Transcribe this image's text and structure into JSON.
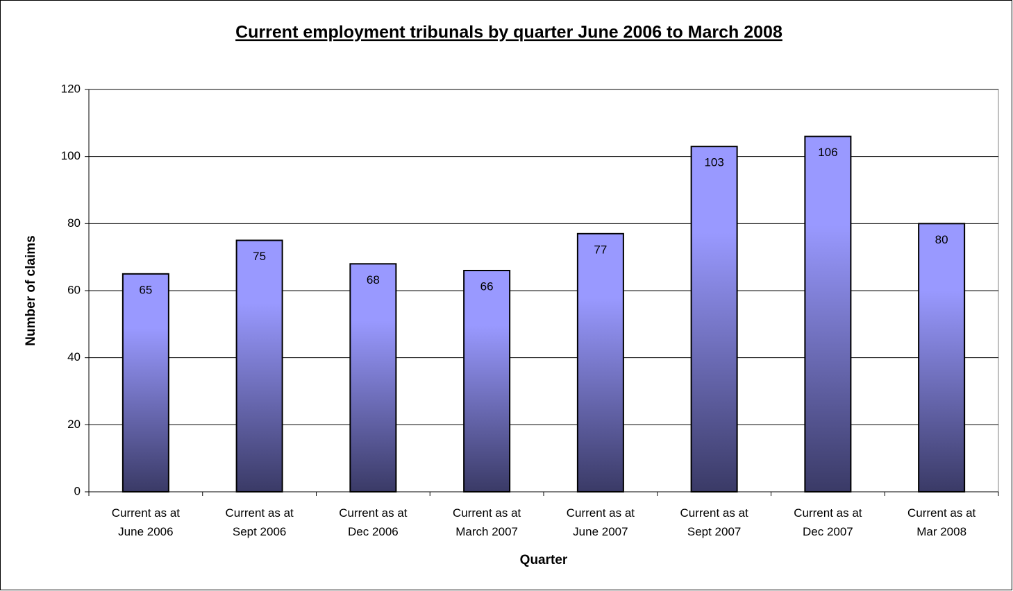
{
  "chart_data": {
    "type": "bar",
    "title": "Current employment tribunals by quarter June 2006 to March 2008",
    "x_label": "Quarter",
    "y_label": "Number of claims",
    "categories": [
      "Current as at June 2006",
      "Current as at Sept 2006",
      "Current as at Dec 2006",
      "Current as at March 2007",
      "Current as at June 2007",
      "Current as at Sept 2007",
      "Current as at Dec 2007",
      "Current as at Mar 2008"
    ],
    "values": [
      65,
      75,
      68,
      66,
      77,
      103,
      106,
      80
    ],
    "color": "#9999ff",
    "ylim": [
      0,
      120
    ],
    "yticks": [
      0,
      20,
      40,
      60,
      80,
      100,
      120
    ],
    "grid": true
  }
}
